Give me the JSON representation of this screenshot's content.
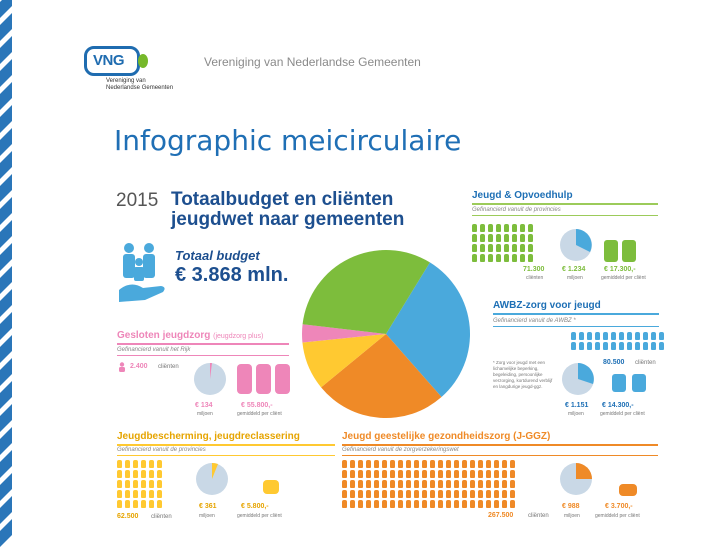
{
  "header": {
    "org_name": "Vereniging van Nederlandse Gemeenten",
    "logo_text": "VNG",
    "logo_sub": "Vereniging van\nNederlandse Gemeenten"
  },
  "slide": {
    "title": "Infographic meicirculaire"
  },
  "infographic": {
    "year": "2015",
    "heading_line1": "Totaalbudget en cliënten",
    "heading_line2": "jeugdwet naar gemeenten",
    "total_label": "Totaal budget",
    "total_value": "€ 3.868 mln.",
    "pie_colors": [
      "#4aa9dc",
      "#ef8a27",
      "#ffc931",
      "#ee86b9",
      "#7dbd3c"
    ],
    "sections": {
      "jeugd": {
        "title": "Jeugd & Opvoedhulp",
        "funding": "Gefinancierd vanuit de provincies",
        "clients_value": "71.300",
        "clients_label": "cliënten",
        "budget_value": "€ 1.234",
        "budget_label": "miljoen",
        "avg_value": "€ 17.300,-",
        "avg_label": "gemiddeld per cliënt"
      },
      "awbz": {
        "title": "AWBZ-zorg voor jeugd",
        "funding": "Gefinancierd vanuit de AWBZ *",
        "note": "* Zorg voor jeugd met een lichamelijke beperking, begeleiding, persoonlijke verzorging, kortdurend verblijf en langdurige jeugd-ggz.",
        "clients_value": "80.500",
        "clients_label": "cliënten",
        "budget_value": "€ 1.151",
        "budget_label": "miljoen",
        "avg_value": "€ 14.300,-",
        "avg_label": "gemiddeld per cliënt"
      },
      "gesloten": {
        "title": "Gesloten jeugdzorg",
        "title_suffix": "(jeugdzorg plus)",
        "funding": "Gefinancierd vanuit het Rijk",
        "clients_value": "2.400",
        "clients_label": "cliënten",
        "budget_value": "€ 134",
        "budget_label": "miljoen",
        "avg_value": "€ 55.800,-",
        "avg_label": "gemiddeld per cliënt"
      },
      "bescherming": {
        "title": "Jeugdbescherming, jeugdreclassering",
        "funding": "Gefinancierd vanuit de provincies",
        "clients_value": "62.500",
        "clients_label": "cliënten",
        "budget_value": "€ 361",
        "budget_label": "miljoen",
        "avg_value": "€ 5.800,-",
        "avg_label": "gemiddeld per cliënt"
      },
      "ggz": {
        "title": "Jeugd geestelijke gezondheidszorg (J-GGZ)",
        "funding": "Gefinancierd vanuit de zorgverzekeringswet",
        "clients_value": "267.500",
        "clients_label": "cliënten",
        "budget_value": "€ 988",
        "budget_label": "miljoen",
        "avg_value": "€ 3.700,-",
        "avg_label": "gemiddeld per cliënt"
      }
    }
  }
}
